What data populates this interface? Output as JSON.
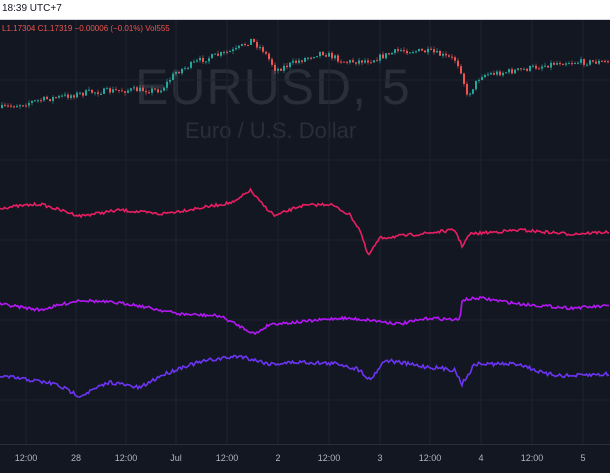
{
  "header": {
    "time": "18:39 UTC+7"
  },
  "legend": {
    "low": "L1.17304",
    "close": "C1.17319",
    "change": "−0.00006 (−0.01%)",
    "volume": "Vol555"
  },
  "watermark": {
    "symbol": "EURUSD, 5",
    "description": "Euro / U.S. Dollar"
  },
  "colors": {
    "background": "#131722",
    "up": "#26a69a",
    "down": "#ef5350",
    "series_crimson": "#e91e63",
    "series_purple": "#b418f5",
    "series_indigo": "#6c35f5",
    "grid": "#1f2330"
  },
  "xaxis": {
    "ticks": [
      "12:00",
      "28",
      "12:00",
      "Jul",
      "12:00",
      "2",
      "12:00",
      "3",
      "12:00",
      "4",
      "12:00",
      "5"
    ]
  }
}
